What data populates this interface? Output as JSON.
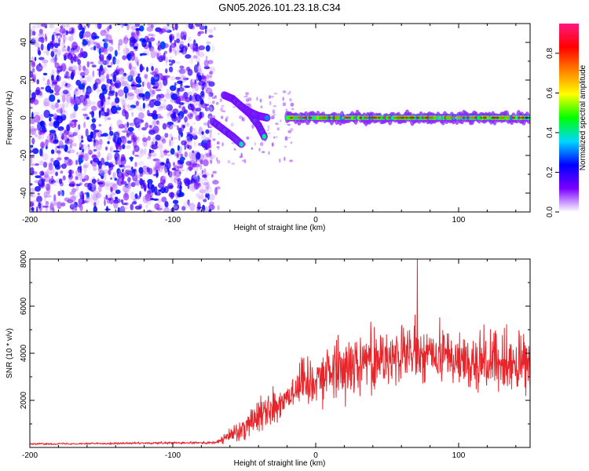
{
  "title": "GN05.2026.101.23.18.C34",
  "chart_data": [
    {
      "type": "heatmap",
      "title": "GN05.2026.101.23.18.C34",
      "xlabel": "Height of straight line (km)",
      "ylabel": "Frequency (Hz)",
      "xlim": [
        -200,
        150
      ],
      "ylim": [
        -50,
        50
      ],
      "xticks": [
        -200,
        -100,
        0,
        100
      ],
      "yticks": [
        -40,
        -20,
        0,
        20,
        40
      ],
      "grid": false,
      "noise_region_x": [
        -200,
        -72
      ],
      "signal_line": {
        "x_start": -20,
        "x_end": 150,
        "frequency": 0
      },
      "chirp_tracks": [
        {
          "x": [
            -72,
            -65,
            -58,
            -52
          ],
          "frequency": [
            -2,
            -6,
            -10,
            -14
          ]
        },
        {
          "x": [
            -52,
            -46,
            -40,
            -36
          ],
          "frequency": [
            6,
            2,
            -4,
            -10
          ]
        },
        {
          "x": [
            -64,
            -58,
            -52,
            -46,
            -40,
            -34
          ],
          "frequency": [
            12,
            10,
            6,
            3,
            1,
            0
          ]
        }
      ],
      "colorbar": {
        "label": "Normalized spectral amplitude",
        "range": [
          0,
          0.95
        ],
        "ticks": [
          0.0,
          0.2,
          0.4,
          0.6,
          0.8
        ],
        "tick_labels": [
          "0.0",
          "0.2",
          "0.4",
          "0.6",
          "0.8"
        ],
        "colormap": [
          "#ffffff",
          "#7a00ff",
          "#0000ff",
          "#00d8ff",
          "#00ff00",
          "#ffff00",
          "#ff8000",
          "#ff0000",
          "#ff1a80"
        ]
      }
    },
    {
      "type": "line",
      "xlabel": "Height of straight line (km)",
      "ylabel": "SNR (10 * v/v)",
      "xlim": [
        -200,
        150
      ],
      "ylim": [
        0,
        8000
      ],
      "xticks": [
        -200,
        -100,
        0,
        100
      ],
      "yticks": [
        2000,
        4000,
        6000,
        8000
      ],
      "grid": false,
      "color": "#e8252a",
      "series": [
        {
          "name": "SNR",
          "trend_x": [
            -200,
            -70,
            -60,
            -50,
            -40,
            -30,
            -20,
            -10,
            0,
            20,
            40,
            60,
            80,
            100,
            120,
            140,
            150
          ],
          "trend_median": [
            150,
            200,
            500,
            900,
            1400,
            1700,
            2200,
            2700,
            3000,
            3500,
            3800,
            3900,
            3900,
            3800,
            3600,
            3500,
            3500
          ],
          "trend_spread": [
            60,
            100,
            600,
            1000,
            1300,
            1400,
            1600,
            1800,
            2000,
            2300,
            2300,
            2300,
            2300,
            2300,
            2300,
            2200,
            2200
          ],
          "peak_value": 8000,
          "peak_x": 71
        }
      ]
    }
  ]
}
